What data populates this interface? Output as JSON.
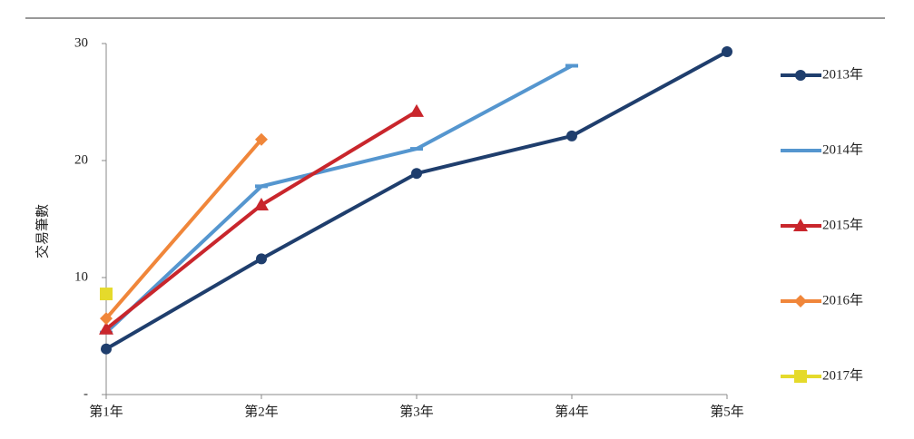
{
  "chart_data": {
    "type": "line",
    "y_label": "交易筆數",
    "categories": [
      "第1年",
      "第2年",
      "第3年",
      "第4年",
      "第5年"
    ],
    "ylim": [
      0,
      30
    ],
    "yticks": [
      {
        "value": 0,
        "label": "-"
      },
      10,
      20,
      30
    ],
    "series": [
      {
        "name": "2013年",
        "color": "#1f3e6d",
        "marker": "circle",
        "values": [
          3.9,
          11.6,
          18.9,
          22.1,
          29.3
        ]
      },
      {
        "name": "2014年",
        "color": "#5596cf",
        "marker": "dash",
        "values": [
          5.3,
          17.8,
          21.0,
          28.1,
          null
        ]
      },
      {
        "name": "2015年",
        "color": "#c9262c",
        "marker": "triangle",
        "values": [
          5.6,
          16.2,
          24.2,
          null,
          null
        ]
      },
      {
        "name": "2016年",
        "color": "#f0863a",
        "marker": "diamond",
        "values": [
          6.5,
          21.8,
          null,
          null,
          null
        ]
      },
      {
        "name": "2017年",
        "color": "#e5da2b",
        "marker": "square",
        "values": [
          8.6,
          null,
          null,
          null,
          null
        ]
      }
    ]
  }
}
